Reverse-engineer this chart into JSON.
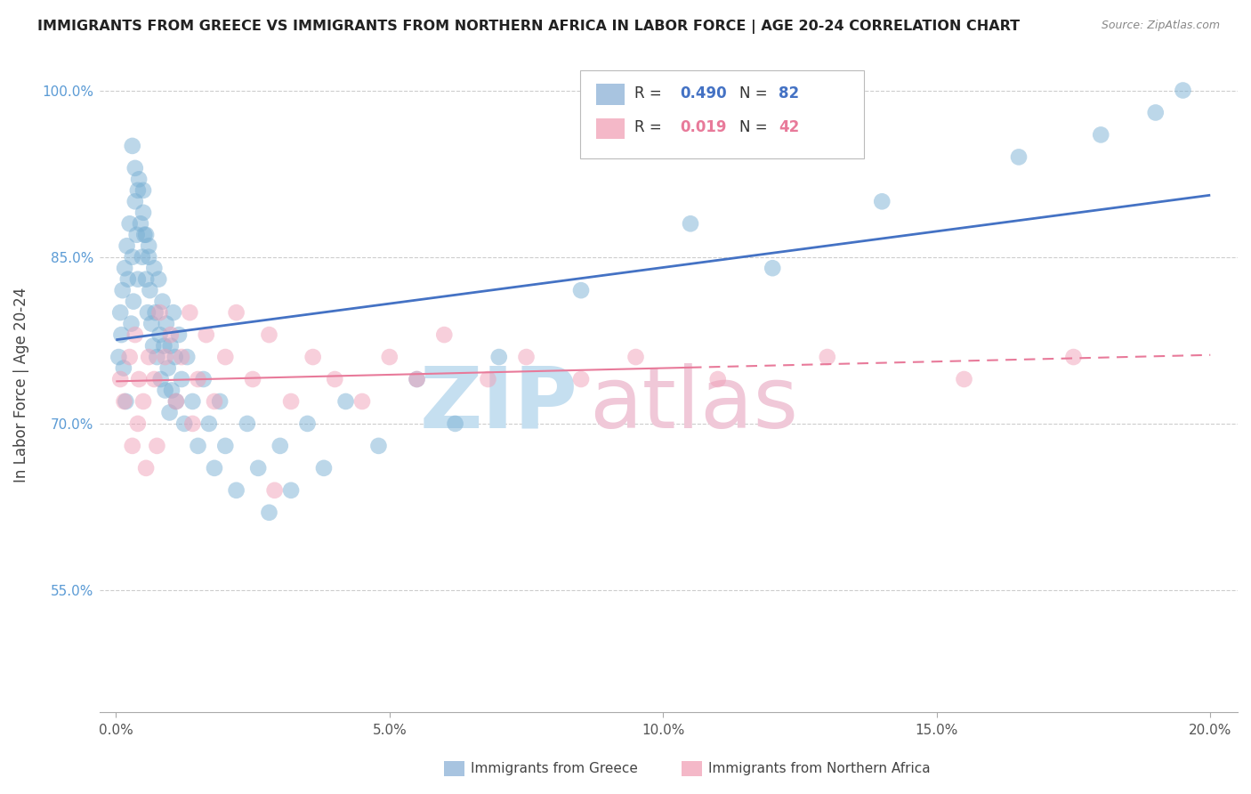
{
  "title": "IMMIGRANTS FROM GREECE VS IMMIGRANTS FROM NORTHERN AFRICA IN LABOR FORCE | AGE 20-24 CORRELATION CHART",
  "source": "Source: ZipAtlas.com",
  "ylabel": "In Labor Force | Age 20-24",
  "xlim": [
    -0.3,
    20.5
  ],
  "ylim": [
    44.0,
    103.0
  ],
  "xticks": [
    0.0,
    5.0,
    10.0,
    15.0,
    20.0
  ],
  "xtick_labels": [
    "0.0%",
    "5.0%",
    "10.0%",
    "15.0%",
    "20.0%"
  ],
  "yticks": [
    55.0,
    70.0,
    85.0,
    100.0
  ],
  "ytick_labels": [
    "55.0%",
    "70.0%",
    "85.0%",
    "100.0%"
  ],
  "legend1_color": "#a8c4e0",
  "legend2_color": "#f4b8c8",
  "series1_color": "#7ab0d4",
  "series2_color": "#f0a0b8",
  "line1_color": "#4472c4",
  "line2_color": "#e87a9a",
  "background_color": "#ffffff",
  "grid_color": "#c8c8c8",
  "greece_x": [
    0.05,
    0.08,
    0.1,
    0.12,
    0.14,
    0.16,
    0.18,
    0.2,
    0.22,
    0.25,
    0.28,
    0.3,
    0.32,
    0.35,
    0.38,
    0.4,
    0.42,
    0.45,
    0.48,
    0.5,
    0.52,
    0.55,
    0.58,
    0.6,
    0.62,
    0.65,
    0.68,
    0.7,
    0.72,
    0.75,
    0.78,
    0.8,
    0.82,
    0.85,
    0.88,
    0.9,
    0.92,
    0.95,
    0.98,
    1.0,
    1.02,
    1.05,
    1.08,
    1.1,
    1.15,
    1.2,
    1.25,
    1.3,
    1.4,
    1.5,
    1.6,
    1.7,
    1.8,
    1.9,
    2.0,
    2.2,
    2.4,
    2.6,
    2.8,
    3.0,
    3.2,
    3.5,
    3.8,
    4.2,
    4.8,
    5.5,
    6.2,
    7.0,
    8.5,
    10.5,
    12.0,
    14.0,
    16.5,
    18.0,
    19.0,
    19.5,
    0.3,
    0.35,
    0.4,
    0.5,
    0.55,
    0.6
  ],
  "greece_y": [
    76.0,
    80.0,
    78.0,
    82.0,
    75.0,
    84.0,
    72.0,
    86.0,
    83.0,
    88.0,
    79.0,
    85.0,
    81.0,
    90.0,
    87.0,
    83.0,
    92.0,
    88.0,
    85.0,
    91.0,
    87.0,
    83.0,
    80.0,
    86.0,
    82.0,
    79.0,
    77.0,
    84.0,
    80.0,
    76.0,
    83.0,
    78.0,
    74.0,
    81.0,
    77.0,
    73.0,
    79.0,
    75.0,
    71.0,
    77.0,
    73.0,
    80.0,
    76.0,
    72.0,
    78.0,
    74.0,
    70.0,
    76.0,
    72.0,
    68.0,
    74.0,
    70.0,
    66.0,
    72.0,
    68.0,
    64.0,
    70.0,
    66.0,
    62.0,
    68.0,
    64.0,
    70.0,
    66.0,
    72.0,
    68.0,
    74.0,
    70.0,
    76.0,
    82.0,
    88.0,
    84.0,
    90.0,
    94.0,
    96.0,
    98.0,
    100.0,
    95.0,
    93.0,
    91.0,
    89.0,
    87.0,
    85.0
  ],
  "africa_x": [
    0.08,
    0.15,
    0.25,
    0.35,
    0.42,
    0.5,
    0.6,
    0.7,
    0.8,
    0.9,
    1.0,
    1.1,
    1.2,
    1.35,
    1.5,
    1.65,
    1.8,
    2.0,
    2.2,
    2.5,
    2.8,
    3.2,
    3.6,
    4.0,
    4.5,
    5.0,
    5.5,
    6.0,
    6.8,
    7.5,
    8.5,
    9.5,
    11.0,
    13.0,
    15.5,
    17.5,
    0.3,
    0.4,
    0.55,
    0.75,
    1.4,
    2.9
  ],
  "africa_y": [
    74.0,
    72.0,
    76.0,
    78.0,
    74.0,
    72.0,
    76.0,
    74.0,
    80.0,
    76.0,
    78.0,
    72.0,
    76.0,
    80.0,
    74.0,
    78.0,
    72.0,
    76.0,
    80.0,
    74.0,
    78.0,
    72.0,
    76.0,
    74.0,
    72.0,
    76.0,
    74.0,
    78.0,
    74.0,
    76.0,
    74.0,
    76.0,
    74.0,
    76.0,
    74.0,
    76.0,
    68.0,
    70.0,
    66.0,
    68.0,
    70.0,
    64.0
  ]
}
